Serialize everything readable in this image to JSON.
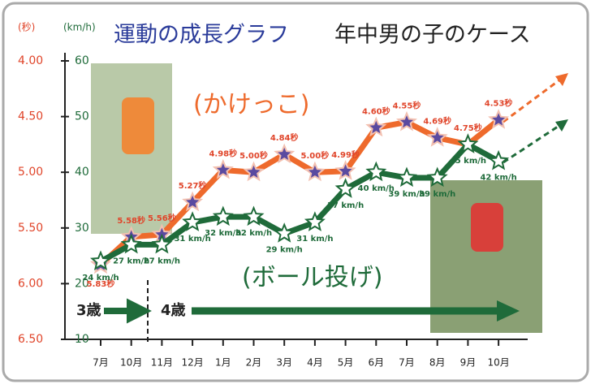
{
  "chart_data": {
    "type": "line",
    "title": "運動の成長グラフ",
    "subtitle": "年中男の子のケース",
    "y_label": "(秒)",
    "y2_label": "(km/h)",
    "categories": [
      "7月",
      "10月",
      "11月",
      "12月",
      "1月",
      "2月",
      "3月",
      "4月",
      "5月",
      "6月",
      "7月",
      "8月",
      "9月",
      "10月"
    ],
    "ylim": [
      6.5,
      4.0
    ],
    "yticks": [
      {
        "value": 4.0,
        "label": "4.00"
      },
      {
        "value": 4.5,
        "label": "4.50"
      },
      {
        "value": 5.0,
        "label": "5.00"
      },
      {
        "value": 5.5,
        "label": "5.50"
      },
      {
        "value": 6.0,
        "label": "6.00"
      },
      {
        "value": 6.5,
        "label": "6.50"
      }
    ],
    "y2lim": [
      10,
      60
    ],
    "y2ticks": [
      10,
      20,
      30,
      40,
      50,
      60
    ],
    "series": [
      {
        "name": "(かけっこ)",
        "color": "#ee6a2c",
        "values": [
          5.83,
          5.58,
          5.56,
          5.27,
          4.98,
          5.0,
          4.84,
          5.0,
          4.99,
          4.6,
          4.55,
          4.69,
          4.75,
          4.53
        ],
        "value_labels": [
          "5.83秒",
          "5.58秒",
          "5.56秒",
          "5.27秒",
          "4.98秒",
          "5.00秒",
          "4.84秒",
          "5.00秒",
          "4.99秒",
          "4.60秒",
          "4.55秒",
          "4.69秒",
          "4.75秒",
          "4.53秒"
        ]
      },
      {
        "name": "(ボール投げ)",
        "color": "#1f6b3a",
        "axis": "y2",
        "values": [
          24,
          27,
          27,
          31,
          32,
          32,
          29,
          31,
          37,
          40,
          39,
          39,
          45,
          42
        ],
        "value_labels": [
          "24 km/h",
          "27 km/h",
          "27 km/h",
          "31 km/h",
          "32 km/h",
          "32 km/h",
          "29 km/h",
          "31 km/h",
          "37 km/h",
          "40 km/h",
          "39 km/h",
          "39 km/h",
          "45 km/h",
          "42 km/h"
        ]
      }
    ],
    "annotations": [
      "3歳",
      "4歳"
    ]
  }
}
